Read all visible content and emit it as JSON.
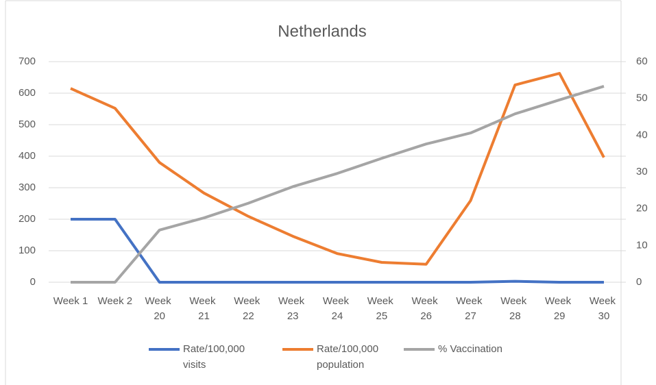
{
  "chart_data": {
    "type": "line",
    "title": "Netherlands",
    "categories": [
      "Week 1",
      "Week 2",
      "Week 20",
      "Week 21",
      "Week 22",
      "Week 23",
      "Week 24",
      "Week 25",
      "Week 26",
      "Week 27",
      "Week 28",
      "Week 29",
      "Week 30"
    ],
    "series": [
      {
        "name": "Rate/100,000 visits",
        "color": "#4472c4",
        "values": [
          200,
          200,
          0,
          0,
          0,
          0,
          0,
          0,
          0,
          0,
          3,
          0,
          0
        ]
      },
      {
        "name": "Rate/100,000 population",
        "color": "#ed7d31",
        "values": [
          615,
          552,
          380,
          283,
          209,
          146,
          91,
          63,
          57,
          259,
          626,
          663,
          396
        ]
      },
      {
        "name": "% Vaccination",
        "color": "#a5a5a5",
        "axis": "y2",
        "values": [
          0,
          0,
          14.2,
          17.5,
          21.5,
          26,
          29.6,
          33.7,
          37.6,
          40.6,
          45.8,
          49.6,
          53.3
        ]
      }
    ],
    "ylim": [
      0,
      700
    ],
    "yticks": [
      0,
      100,
      200,
      300,
      400,
      500,
      600,
      700
    ],
    "y2lim": [
      0,
      60
    ],
    "y2ticks": [
      0,
      10,
      20,
      30,
      40,
      50,
      60
    ],
    "grid": true,
    "legend": "bottom"
  }
}
